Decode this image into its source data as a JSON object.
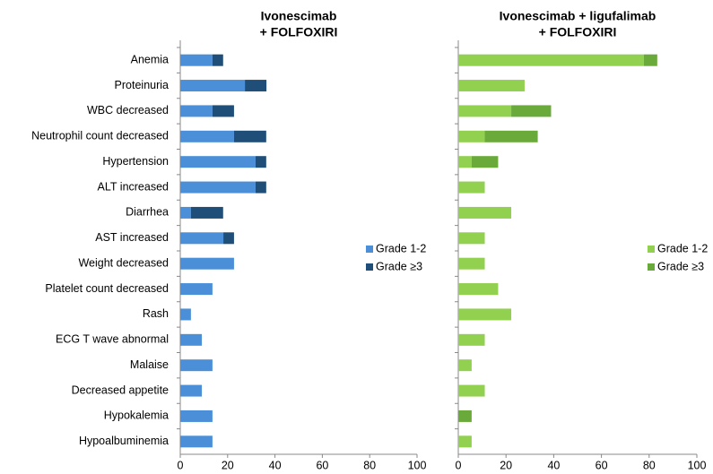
{
  "chart_data": [
    {
      "type": "stacked-hbar",
      "title": [
        "Ivonescimab",
        "+ FOLFOXIRI"
      ],
      "categories": [
        "Anemia",
        "Proteinuria",
        "WBC decreased",
        "Neutrophil count decreased",
        "Hypertension",
        "ALT increased",
        "Diarrhea",
        "AST increased",
        "Weight decreased",
        "Platelet count decreased",
        "Rash",
        "ECG T wave abnormal",
        "Malaise",
        "Decreased appetite",
        "Hypokalemia",
        "Hypoalbuminemia"
      ],
      "series": [
        {
          "name": "Grade 1-2",
          "color": "#4a8fd8",
          "values": [
            13.6,
            27.3,
            13.6,
            22.7,
            31.8,
            31.8,
            4.5,
            18.2,
            22.7,
            13.6,
            4.5,
            9.1,
            13.6,
            9.1,
            13.6,
            13.6
          ]
        },
        {
          "name": "Grade ≥3",
          "color": "#1f4e79",
          "values": [
            4.5,
            9.1,
            9.1,
            13.6,
            4.5,
            4.5,
            13.6,
            4.5,
            0,
            0,
            0,
            0,
            0,
            0,
            0,
            0
          ]
        }
      ],
      "xlim": [
        0,
        100
      ],
      "xticks": [
        0,
        20,
        40,
        60,
        80,
        100
      ]
    },
    {
      "type": "stacked-hbar",
      "title": [
        "Ivonescimab + ligufalimab",
        "+ FOLFOXIRI"
      ],
      "series": [
        {
          "name": "Grade 1-2",
          "color": "#92d050",
          "values": [
            77.8,
            27.8,
            22.2,
            11.1,
            5.6,
            11.1,
            22.2,
            11.1,
            11.1,
            16.7,
            22.2,
            11.1,
            5.6,
            11.1,
            0,
            5.6
          ]
        },
        {
          "name": "Grade ≥3",
          "color": "#6aaa3a",
          "values": [
            5.6,
            0,
            16.7,
            22.2,
            11.1,
            0,
            0,
            0,
            0,
            0,
            0,
            0,
            0,
            0,
            5.6,
            0
          ]
        }
      ],
      "xlim": [
        0,
        100
      ],
      "xticks": [
        0,
        20,
        40,
        60,
        80,
        100
      ]
    }
  ]
}
